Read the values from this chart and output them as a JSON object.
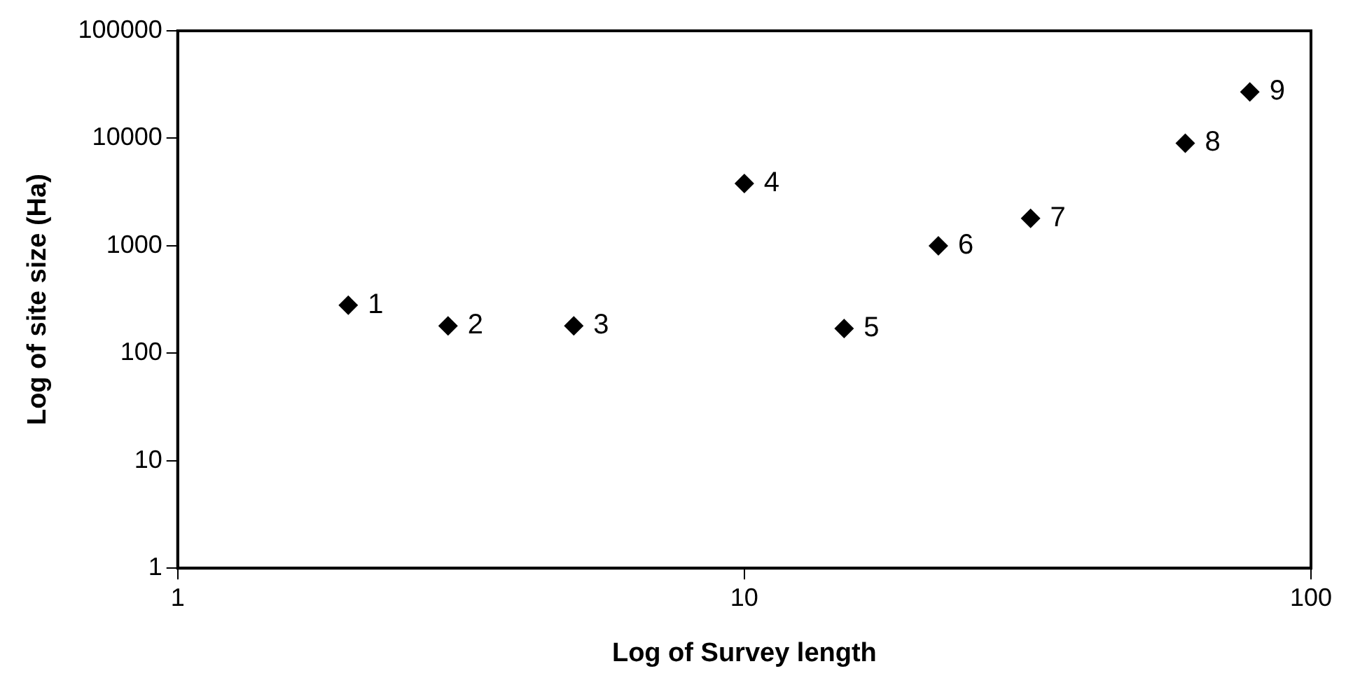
{
  "chart_data": {
    "type": "scatter",
    "xlabel": "Log of Survey length",
    "ylabel": "Log of site size (Ha)",
    "x": [
      2,
      3,
      5,
      10,
      15,
      22,
      32,
      60,
      78
    ],
    "values": [
      280,
      180,
      180,
      3800,
      170,
      1000,
      1800,
      9000,
      27000
    ],
    "color": "#000000",
    "marker": "diamond",
    "log": "xy",
    "grid": false,
    "legend": false,
    "xlim": [
      1,
      100
    ],
    "xticks": [
      1,
      10,
      100
    ],
    "ylim": [
      1,
      100000
    ],
    "yticks": [
      1,
      10,
      100,
      1000,
      10000,
      100000
    ],
    "annotations": [
      {
        "text": "1",
        "x": 2,
        "y": 280
      },
      {
        "text": "2",
        "x": 3,
        "y": 180
      },
      {
        "text": "3",
        "x": 5,
        "y": 180
      },
      {
        "text": "4",
        "x": 10,
        "y": 3800
      },
      {
        "text": "5",
        "x": 15,
        "y": 170
      },
      {
        "text": "6",
        "x": 22,
        "y": 1000
      },
      {
        "text": "7",
        "x": 32,
        "y": 1800
      },
      {
        "text": "8",
        "x": 60,
        "y": 9000
      },
      {
        "text": "9",
        "x": 78,
        "y": 27000
      }
    ]
  }
}
